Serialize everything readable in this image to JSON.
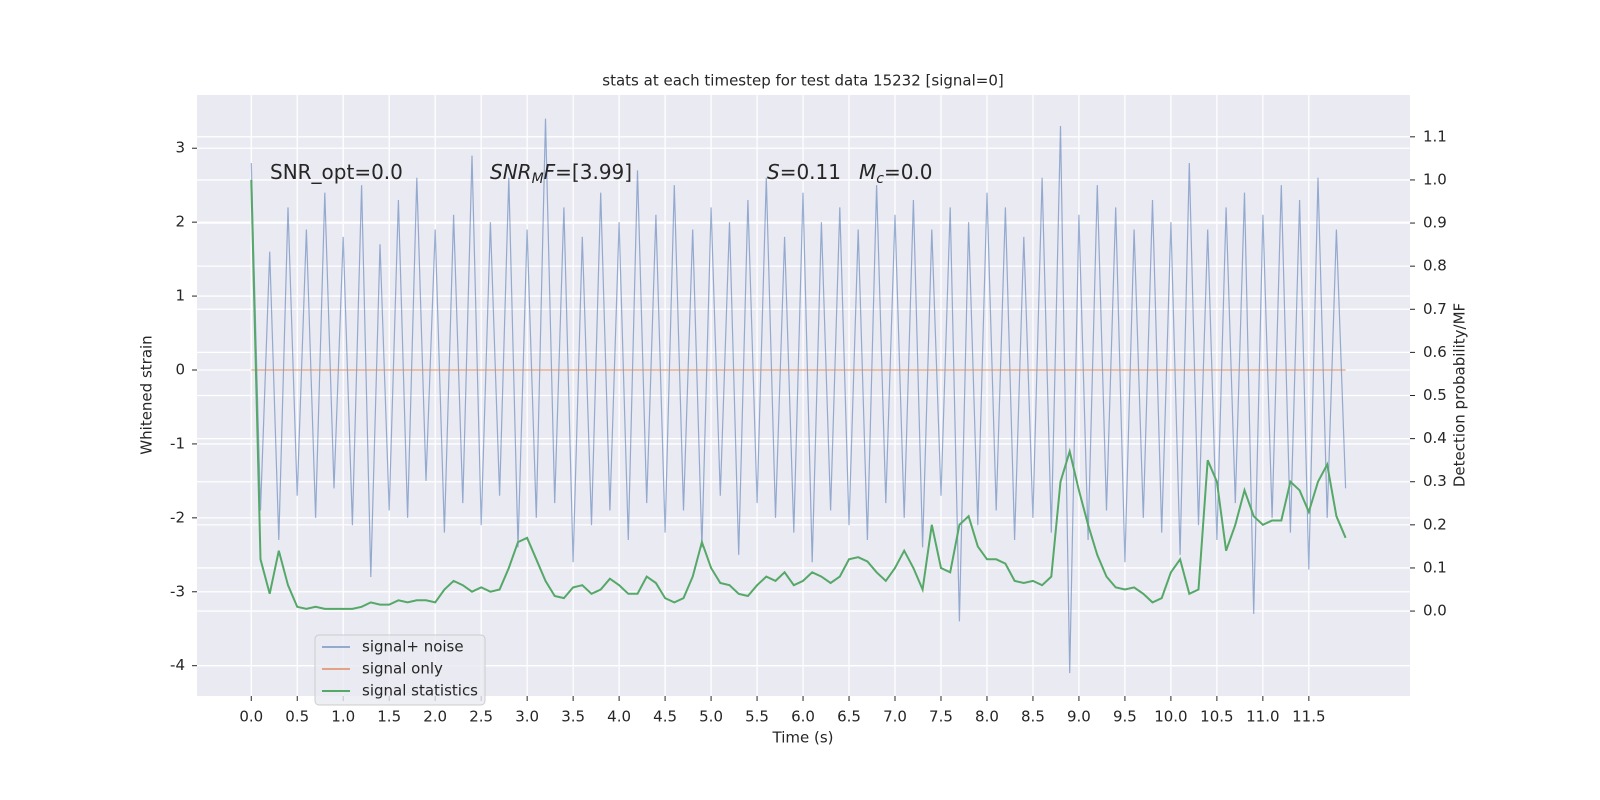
{
  "chart_data": {
    "type": "line",
    "title": "stats at each timestep for test data 15232 [signal=0]",
    "x_label": "Time (s)",
    "y_label": "Whitened strain",
    "y2_label": "Detection probability/MF",
    "x": [
      0,
      0.1,
      0.2,
      0.3,
      0.4,
      0.5,
      0.6,
      0.7,
      0.8,
      0.9,
      1,
      1.1,
      1.2,
      1.3,
      1.4,
      1.5,
      1.6,
      1.7,
      1.8,
      1.9,
      2,
      2.1,
      2.2,
      2.3,
      2.4,
      2.5,
      2.6,
      2.7,
      2.8,
      2.9,
      3,
      3.1,
      3.2,
      3.3,
      3.4,
      3.5,
      3.6,
      3.7,
      3.8,
      3.9,
      4,
      4.1,
      4.2,
      4.3,
      4.4,
      4.5,
      4.6,
      4.7,
      4.8,
      4.9,
      5,
      5.1,
      5.2,
      5.3,
      5.4,
      5.5,
      5.6,
      5.7,
      5.8,
      5.9,
      6,
      6.1,
      6.2,
      6.3,
      6.4,
      6.5,
      6.6,
      6.7,
      6.8,
      6.9,
      7,
      7.1,
      7.2,
      7.3,
      7.4,
      7.5,
      7.6,
      7.7,
      7.8,
      7.9,
      8,
      8.1,
      8.2,
      8.3,
      8.4,
      8.5,
      8.6,
      8.7,
      8.8,
      8.9,
      9,
      9.1,
      9.2,
      9.3,
      9.4,
      9.5,
      9.6,
      9.7,
      9.8,
      9.9,
      10,
      10.1,
      10.2,
      10.3,
      10.4,
      10.5,
      10.6,
      10.7,
      10.8,
      10.9,
      11,
      11.1,
      11.2,
      11.3,
      11.4,
      11.5,
      11.6,
      11.7,
      11.8,
      11.9
    ],
    "series": [
      {
        "name": "signal+ noise",
        "color": "#4c72b0",
        "opacity": 0.55,
        "values": [
          2.8,
          -1.9,
          1.6,
          -2.3,
          2.2,
          -1.7,
          1.9,
          -2.0,
          2.4,
          -1.6,
          1.8,
          -2.1,
          2.5,
          -2.8,
          1.7,
          -1.9,
          2.3,
          -2.0,
          2.6,
          -1.5,
          1.9,
          -2.2,
          2.1,
          -1.8,
          2.9,
          -2.1,
          2.0,
          -1.7,
          2.6,
          -2.4,
          1.9,
          -2.0,
          3.4,
          -1.8,
          2.2,
          -2.6,
          1.8,
          -2.1,
          2.4,
          -1.9,
          2.0,
          -2.3,
          2.7,
          -1.8,
          2.1,
          -2.2,
          2.5,
          -1.9,
          1.9,
          -2.4,
          2.2,
          -1.7,
          2.0,
          -2.5,
          2.3,
          -1.8,
          2.6,
          -2.0,
          1.8,
          -2.2,
          2.4,
          -2.6,
          2.0,
          -1.9,
          2.2,
          -2.1,
          1.9,
          -2.3,
          2.5,
          -1.8,
          2.1,
          -2.0,
          2.3,
          -2.4,
          1.9,
          -1.7,
          2.2,
          -3.4,
          2.0,
          -2.1,
          2.4,
          -1.9,
          2.2,
          -2.3,
          1.8,
          -2.0,
          2.6,
          -2.2,
          3.3,
          -4.1,
          2.1,
          -2.3,
          2.5,
          -1.9,
          2.2,
          -2.6,
          1.9,
          -2.0,
          2.3,
          -2.2,
          2.0,
          -2.5,
          2.8,
          -2.1,
          1.9,
          -2.3,
          2.2,
          -1.8,
          2.4,
          -3.3,
          2.1,
          -2.0,
          2.5,
          -2.2,
          2.3,
          -2.7,
          2.6,
          -2.0,
          1.9,
          -1.6
        ]
      },
      {
        "name": "signal only",
        "color": "#dd8452",
        "opacity": 0.7,
        "x": [
          0,
          11.9
        ],
        "values": [
          0,
          0
        ]
      },
      {
        "name": "signal statistics",
        "color": "#55a868",
        "opacity": 1,
        "axis": "y2",
        "values": [
          1.0,
          0.12,
          0.04,
          0.14,
          0.06,
          0.01,
          0.005,
          0.01,
          0.005,
          0.005,
          0.005,
          0.005,
          0.01,
          0.02,
          0.015,
          0.015,
          0.025,
          0.02,
          0.025,
          0.025,
          0.02,
          0.05,
          0.07,
          0.06,
          0.045,
          0.055,
          0.045,
          0.05,
          0.1,
          0.16,
          0.17,
          0.12,
          0.07,
          0.035,
          0.03,
          0.055,
          0.06,
          0.04,
          0.05,
          0.075,
          0.06,
          0.04,
          0.04,
          0.08,
          0.065,
          0.03,
          0.02,
          0.03,
          0.08,
          0.16,
          0.1,
          0.065,
          0.06,
          0.04,
          0.035,
          0.06,
          0.08,
          0.07,
          0.09,
          0.06,
          0.07,
          0.09,
          0.08,
          0.065,
          0.08,
          0.12,
          0.125,
          0.115,
          0.09,
          0.07,
          0.1,
          0.14,
          0.1,
          0.05,
          0.2,
          0.1,
          0.09,
          0.2,
          0.22,
          0.15,
          0.12,
          0.12,
          0.11,
          0.07,
          0.065,
          0.07,
          0.06,
          0.08,
          0.3,
          0.37,
          0.28,
          0.2,
          0.13,
          0.08,
          0.055,
          0.05,
          0.055,
          0.04,
          0.02,
          0.03,
          0.09,
          0.12,
          0.04,
          0.05,
          0.35,
          0.3,
          0.14,
          0.2,
          0.28,
          0.22,
          0.2,
          0.21,
          0.21,
          0.3,
          0.28,
          0.23,
          0.3,
          0.34,
          0.22,
          0.17
        ]
      }
    ],
    "annotations": [
      [
        {
          "text": "SNR_opt=0.0"
        }
      ],
      [
        {
          "text": "SNR",
          "italic": true
        },
        {
          "text": "M",
          "italic": true,
          "subscript": true
        },
        {
          "text": "F",
          "italic": true
        },
        {
          "text": "=[3.99]"
        }
      ],
      [
        {
          "text": "S",
          "italic": true
        },
        {
          "text": "=0.11"
        }
      ],
      [
        {
          "text": "M",
          "italic": true
        },
        {
          "text": "c",
          "italic": true,
          "subscript": true
        },
        {
          "text": "=0.0"
        }
      ]
    ],
    "xlim": [
      -0.59,
      12.6
    ],
    "xticks": [
      {
        "value": 0,
        "label": "0.0"
      },
      0.5,
      {
        "value": 1,
        "label": "1.0"
      },
      1.5,
      {
        "value": 2,
        "label": "2.0"
      },
      2.5,
      {
        "value": 3,
        "label": "3.0"
      },
      3.5,
      {
        "value": 4,
        "label": "4.0"
      },
      4.5,
      {
        "value": 5,
        "label": "5.0"
      },
      5.5,
      {
        "value": 6,
        "label": "6.0"
      },
      6.5,
      {
        "value": 7,
        "label": "7.0"
      },
      7.5,
      {
        "value": 8,
        "label": "8.0"
      },
      8.5,
      {
        "value": 9,
        "label": "9.0"
      },
      9.5,
      {
        "value": 10,
        "label": "10.0"
      },
      10.5,
      {
        "value": 11,
        "label": "11.0"
      },
      11.5
    ],
    "ylim": [
      -4.41,
      3.72
    ],
    "yticks": [
      -4,
      -3,
      -2,
      -1,
      0,
      1,
      2,
      3
    ],
    "y2lim": [
      -0.197,
      1.197
    ],
    "y2ticks": [
      {
        "value": 0,
        "label": "0.0"
      },
      0.1,
      0.2,
      0.3,
      0.4,
      0.5,
      0.6,
      0.7,
      0.8,
      0.9,
      {
        "value": 1,
        "label": "1.0"
      },
      1.1
    ],
    "grid": true,
    "legend": "lower left"
  }
}
